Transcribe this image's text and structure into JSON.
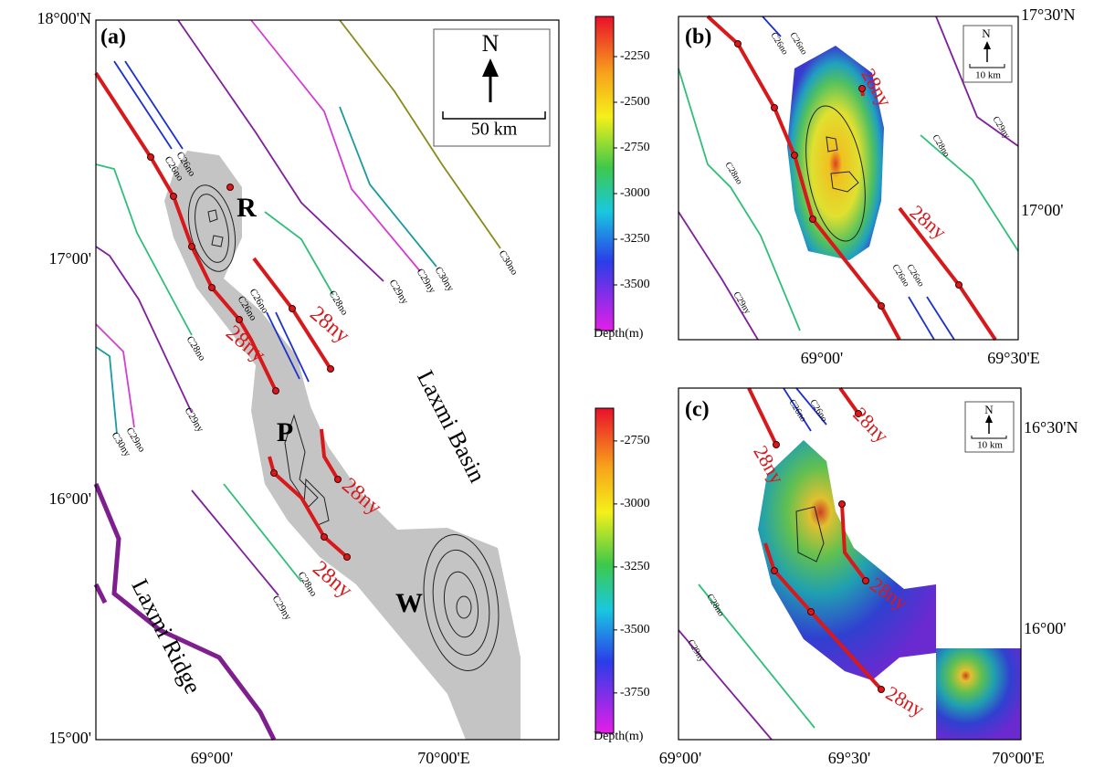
{
  "panels": [
    {
      "label": "(a)",
      "lat_labels": [
        "18°00'N",
        "17°00'",
        "16°00'",
        "15°00'"
      ],
      "lon_labels": [
        "69°00'",
        "70°00'E"
      ],
      "north": "N",
      "scale": "50 km",
      "features": [
        "R",
        "P",
        "W"
      ],
      "regions": [
        "Laxmi Basin",
        "Laxmi Ridge"
      ],
      "picks": [
        "28ny",
        "28ny",
        "28ny",
        "28ny"
      ],
      "anomalies": [
        "C26no",
        "C26no",
        "C26no",
        "C26no",
        "C28no",
        "C28no",
        "C29ny",
        "C29ny",
        "C30ny",
        "C30no",
        "C29ny",
        "C30ny",
        "C29no",
        "C28no",
        "C29ny"
      ]
    },
    {
      "label": "(b)",
      "lat_labels": [
        "17°30'N",
        "17°00'"
      ],
      "lon_labels": [
        "69°00'",
        "69°30'E"
      ],
      "north": "N",
      "scale": "10 km",
      "picks": [
        "28ny",
        "28ny"
      ],
      "anomalies": [
        "C26no",
        "C26no",
        "C28no",
        "C29ny",
        "C28no",
        "C29ny",
        "C26no",
        "C26no"
      ],
      "colorbar": {
        "title": "Depth(m)",
        "clim": [
          -3750,
          -2030
        ],
        "ticks": [
          -2250,
          -2500,
          -2750,
          -3000,
          -3250,
          -3500
        ]
      }
    },
    {
      "label": "(c)",
      "lat_labels": [
        "16°30'N",
        "16°00'"
      ],
      "lon_labels": [
        "69°00'",
        "69°30'",
        "70°00'E"
      ],
      "north": "N",
      "scale": "10 km",
      "picks": [
        "28ny",
        "28ny",
        "28ny",
        "28ny"
      ],
      "anomalies": [
        "C26no",
        "C26no",
        "C28no",
        "C29ny"
      ],
      "colorbar": {
        "title": "Depth(m)",
        "clim": [
          -3910,
          -2620
        ],
        "ticks": [
          -2750,
          -3000,
          -3250,
          -3500,
          -3750
        ]
      }
    }
  ]
}
